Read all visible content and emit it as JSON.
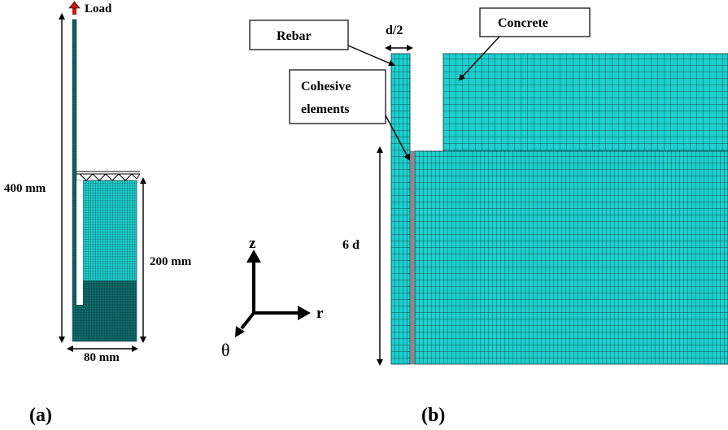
{
  "panel_a": {
    "load_label": "Load",
    "height_label": "400 mm",
    "concrete_height_label": "200 mm",
    "width_label": "80 mm",
    "caption": "(a)"
  },
  "axes": {
    "z_label": "z",
    "r_label": "r",
    "theta_label": "θ"
  },
  "panel_b": {
    "rebar_label": "Rebar",
    "half_d_label": "d/2",
    "concrete_label": "Concrete",
    "cohesive_label_line1": "Cohesive",
    "cohesive_label_line2": "elements",
    "embed_label": "6 d",
    "caption": "(b)"
  },
  "colors": {
    "mesh": "#1ecfcf",
    "mesh_lines": "#0a2a2a",
    "cohesive": "#8a8a8a",
    "load_arrow": "#cc1111"
  }
}
